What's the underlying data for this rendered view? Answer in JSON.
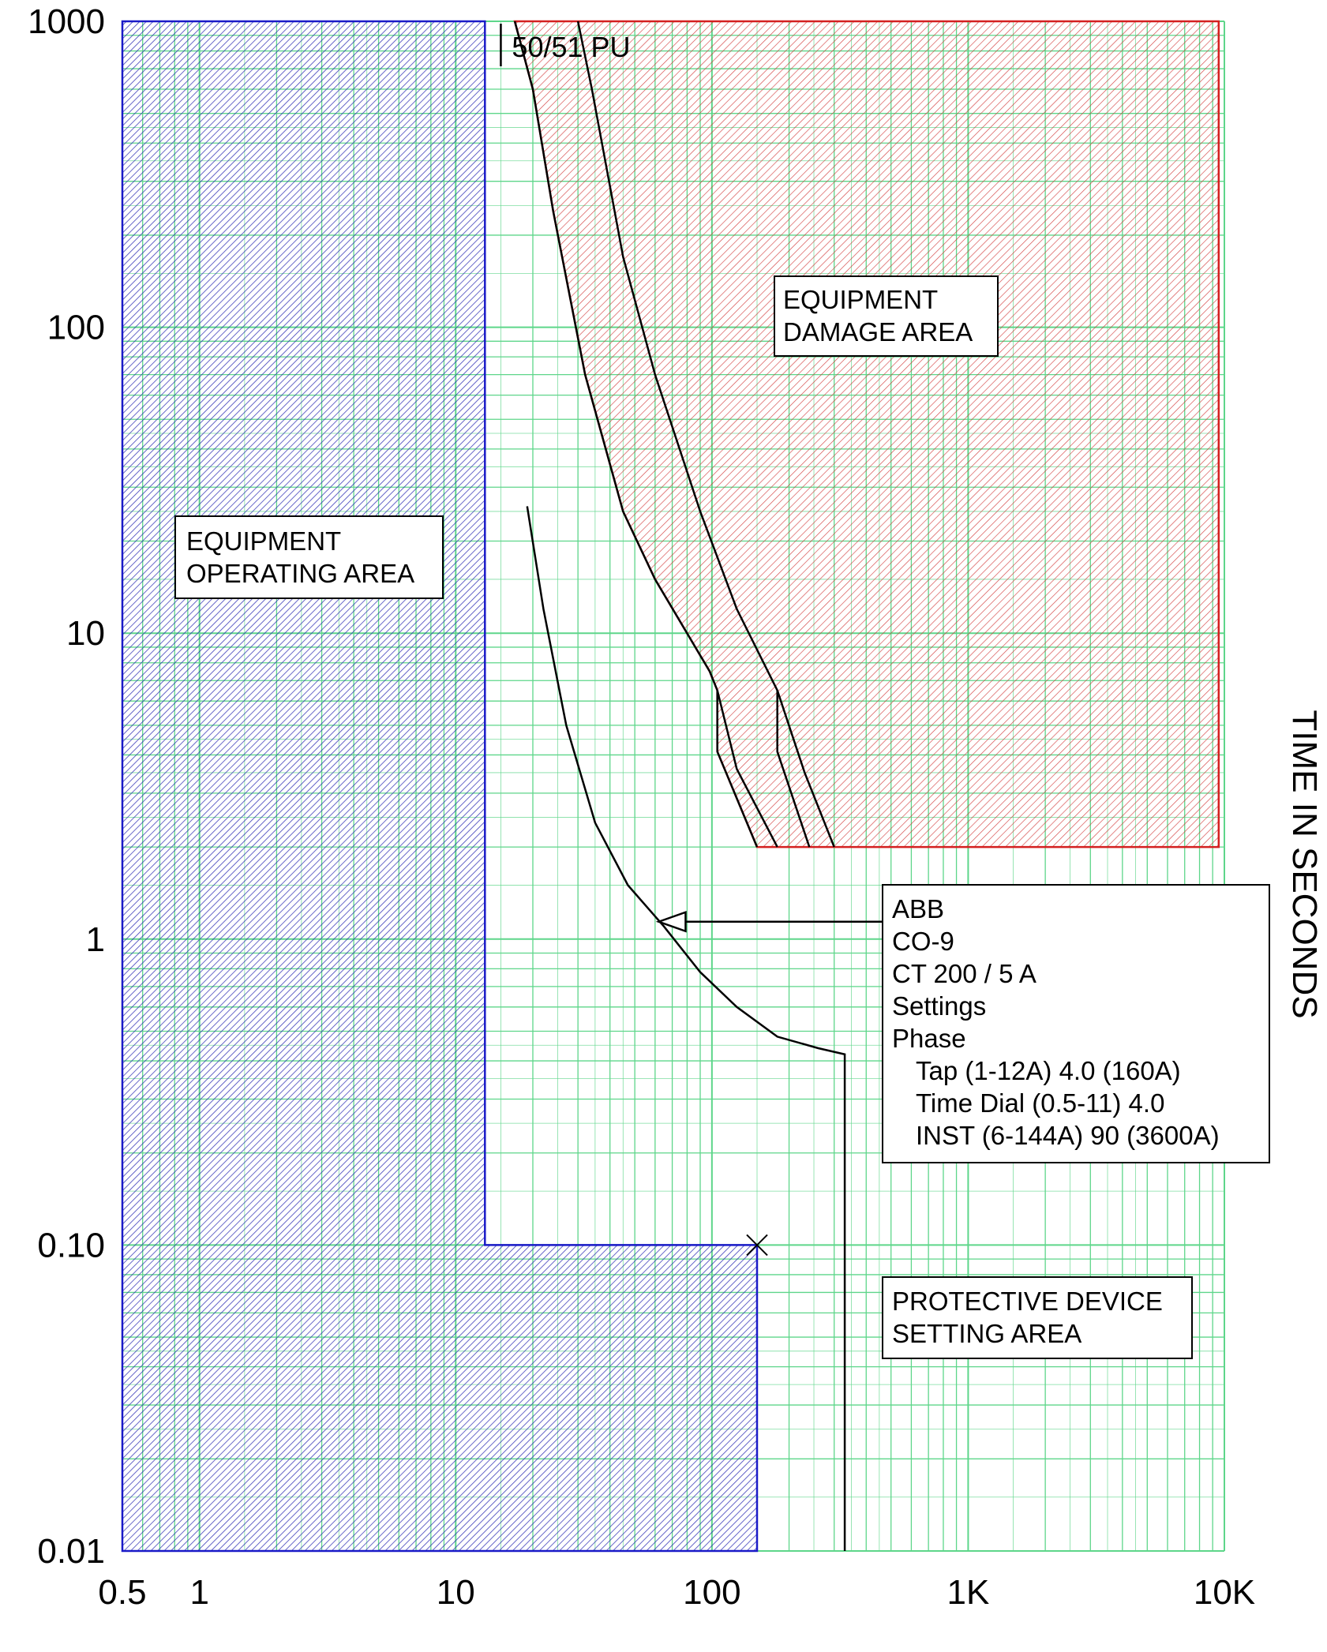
{
  "chart_data": {
    "type": "line",
    "xscale": "log",
    "yscale": "log",
    "xlim": [
      0.5,
      10000
    ],
    "ylim": [
      0.01,
      1000
    ],
    "xticks": [
      {
        "value": 0.5,
        "label": "0.5"
      },
      {
        "value": 1,
        "label": "1"
      },
      {
        "value": 10,
        "label": "10"
      },
      {
        "value": 100,
        "label": "100"
      },
      {
        "value": 1000,
        "label": "1K"
      },
      {
        "value": 10000,
        "label": "10K"
      }
    ],
    "yticks": [
      {
        "value": 1000,
        "label": "1000"
      },
      {
        "value": 100,
        "label": "100"
      },
      {
        "value": 10,
        "label": "10"
      },
      {
        "value": 1,
        "label": "1"
      },
      {
        "value": 0.1,
        "label": "0.10"
      },
      {
        "value": 0.01,
        "label": "0.01"
      }
    ],
    "xlabel": "",
    "ylabel": "TIME IN SECONDS",
    "grid": true,
    "colors": {
      "grid": "#5ed68a",
      "operating_area": "#1a1ac8",
      "damage_area": "#d42020",
      "curve": "#000000"
    },
    "operating_area": {
      "label_lines": [
        "EQUIPMENT",
        "OPERATING AREA"
      ],
      "vertices": [
        [
          0.5,
          0.01
        ],
        [
          0.5,
          1000
        ],
        [
          13,
          1000
        ],
        [
          13,
          0.1
        ],
        [
          150,
          0.1
        ],
        [
          150,
          0.01
        ]
      ]
    },
    "damage_area": {
      "label_lines": [
        "EQUIPMENT",
        "DAMAGE AREA"
      ],
      "vertices": [
        [
          17,
          1000
        ],
        [
          9500,
          1000
        ],
        [
          9500,
          2
        ],
        [
          150,
          2
        ],
        [
          105,
          4.1
        ],
        [
          105,
          6.5
        ],
        [
          98,
          7.5
        ],
        [
          60,
          15
        ],
        [
          45,
          25
        ],
        [
          32,
          70
        ],
        [
          24,
          240
        ],
        [
          20,
          600
        ],
        [
          17,
          1000
        ]
      ]
    },
    "pickup_marker": {
      "label": "50/51 PU",
      "x": 15
    },
    "x_marker": {
      "x": 150,
      "y": 0.1
    },
    "relay_curve": {
      "points": [
        [
          19,
          26
        ],
        [
          22,
          12
        ],
        [
          27,
          5
        ],
        [
          35,
          2.4
        ],
        [
          47,
          1.5
        ],
        [
          65,
          1.1
        ],
        [
          90,
          0.78
        ],
        [
          125,
          0.6
        ],
        [
          180,
          0.48
        ],
        [
          260,
          0.44
        ],
        [
          330,
          0.42
        ],
        [
          330,
          0.01
        ]
      ]
    },
    "damage_curves": [
      {
        "points": [
          [
            17,
            1000
          ],
          [
            20,
            600
          ],
          [
            24,
            240
          ],
          [
            32,
            70
          ],
          [
            45,
            25
          ],
          [
            60,
            15
          ],
          [
            98,
            7.5
          ],
          [
            105,
            6.5
          ],
          [
            105,
            4.1
          ],
          [
            150,
            2
          ]
        ]
      },
      {
        "points": [
          [
            30,
            1000
          ],
          [
            34,
            600
          ],
          [
            45,
            170
          ],
          [
            60,
            70
          ],
          [
            90,
            25
          ],
          [
            125,
            12
          ],
          [
            180,
            6.5
          ],
          [
            180,
            4.1
          ],
          [
            240,
            2
          ]
        ]
      },
      {
        "points": [
          [
            105,
            6.5
          ],
          [
            125,
            3.6
          ],
          [
            180,
            2
          ]
        ]
      },
      {
        "points": [
          [
            180,
            6.5
          ],
          [
            230,
            3.5
          ],
          [
            300,
            2
          ]
        ]
      }
    ],
    "device_label": {
      "lines": [
        "ABB",
        "CO-9",
        "CT 200 / 5 A",
        "Settings",
        "Phase",
        "Tap (1-12A) 4.0 (160A)",
        "Time Dial (0.5-11) 4.0",
        "INST (6-144A) 90 (3600A)"
      ],
      "arrow_to": {
        "x": 62,
        "y": 1.14
      }
    },
    "setting_area": {
      "label_lines": [
        "PROTECTIVE DEVICE",
        "SETTING AREA"
      ]
    }
  }
}
